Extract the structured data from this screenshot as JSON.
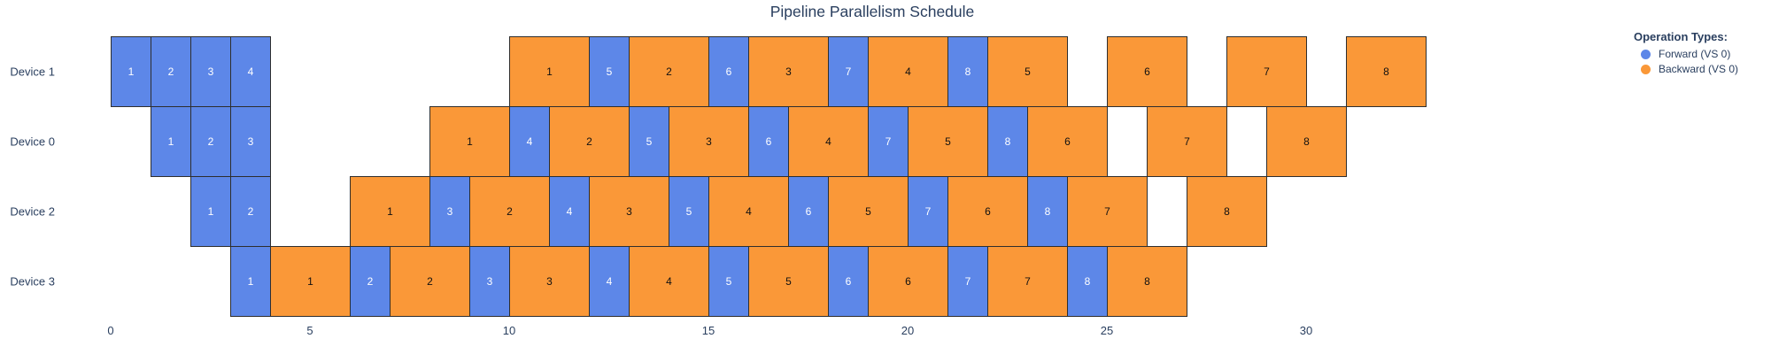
{
  "title": "Pipeline Parallelism Schedule",
  "legend": {
    "title": "Operation Types:",
    "items": [
      {
        "label": "Forward (VS 0)",
        "type": "forward",
        "color": "#5d87e8"
      },
      {
        "label": "Backward (VS 0)",
        "type": "backward",
        "color": "#fa9838"
      }
    ]
  },
  "colors": {
    "forward_fill": "#5d87e8",
    "backward_fill": "#fa9838",
    "block_border": "#2e2e2e",
    "forward_text": "#ffffff",
    "backward_text": "#111111",
    "axis_text": "#2a3f5f",
    "background": "#ffffff"
  },
  "chart_data": {
    "type": "gantt",
    "title": "Pipeline Parallelism Schedule",
    "xlabel": "",
    "ylabel": "",
    "grid": false,
    "legend_position": "top-right",
    "x_ticks": [
      0,
      5,
      10,
      15,
      20,
      25,
      30
    ],
    "x_range": [
      0,
      33
    ],
    "forward_duration": 1,
    "backward_duration": 2,
    "num_microbatches": 8,
    "rows": [
      {
        "device": "Device 1",
        "ops": [
          {
            "t": "F",
            "mb": 1,
            "start": 0,
            "dur": 1
          },
          {
            "t": "F",
            "mb": 2,
            "start": 1,
            "dur": 1
          },
          {
            "t": "F",
            "mb": 3,
            "start": 2,
            "dur": 1
          },
          {
            "t": "F",
            "mb": 4,
            "start": 3,
            "dur": 1
          },
          {
            "t": "B",
            "mb": 1,
            "start": 10,
            "dur": 2
          },
          {
            "t": "F",
            "mb": 5,
            "start": 12,
            "dur": 1
          },
          {
            "t": "B",
            "mb": 2,
            "start": 13,
            "dur": 2
          },
          {
            "t": "F",
            "mb": 6,
            "start": 15,
            "dur": 1
          },
          {
            "t": "B",
            "mb": 3,
            "start": 16,
            "dur": 2
          },
          {
            "t": "F",
            "mb": 7,
            "start": 18,
            "dur": 1
          },
          {
            "t": "B",
            "mb": 4,
            "start": 19,
            "dur": 2
          },
          {
            "t": "F",
            "mb": 8,
            "start": 21,
            "dur": 1
          },
          {
            "t": "B",
            "mb": 5,
            "start": 22,
            "dur": 2
          },
          {
            "t": "B",
            "mb": 6,
            "start": 25,
            "dur": 2
          },
          {
            "t": "B",
            "mb": 7,
            "start": 28,
            "dur": 2
          },
          {
            "t": "B",
            "mb": 8,
            "start": 31,
            "dur": 2
          }
        ]
      },
      {
        "device": "Device 0",
        "ops": [
          {
            "t": "F",
            "mb": 1,
            "start": 1,
            "dur": 1
          },
          {
            "t": "F",
            "mb": 2,
            "start": 2,
            "dur": 1
          },
          {
            "t": "F",
            "mb": 3,
            "start": 3,
            "dur": 1
          },
          {
            "t": "B",
            "mb": 1,
            "start": 8,
            "dur": 2
          },
          {
            "t": "F",
            "mb": 4,
            "start": 10,
            "dur": 1
          },
          {
            "t": "B",
            "mb": 2,
            "start": 11,
            "dur": 2
          },
          {
            "t": "F",
            "mb": 5,
            "start": 13,
            "dur": 1
          },
          {
            "t": "B",
            "mb": 3,
            "start": 14,
            "dur": 2
          },
          {
            "t": "F",
            "mb": 6,
            "start": 16,
            "dur": 1
          },
          {
            "t": "B",
            "mb": 4,
            "start": 17,
            "dur": 2
          },
          {
            "t": "F",
            "mb": 7,
            "start": 19,
            "dur": 1
          },
          {
            "t": "B",
            "mb": 5,
            "start": 20,
            "dur": 2
          },
          {
            "t": "F",
            "mb": 8,
            "start": 22,
            "dur": 1
          },
          {
            "t": "B",
            "mb": 6,
            "start": 23,
            "dur": 2
          },
          {
            "t": "B",
            "mb": 7,
            "start": 26,
            "dur": 2
          },
          {
            "t": "B",
            "mb": 8,
            "start": 29,
            "dur": 2
          }
        ]
      },
      {
        "device": "Device 2",
        "ops": [
          {
            "t": "F",
            "mb": 1,
            "start": 2,
            "dur": 1
          },
          {
            "t": "F",
            "mb": 2,
            "start": 3,
            "dur": 1
          },
          {
            "t": "B",
            "mb": 1,
            "start": 6,
            "dur": 2
          },
          {
            "t": "F",
            "mb": 3,
            "start": 8,
            "dur": 1
          },
          {
            "t": "B",
            "mb": 2,
            "start": 9,
            "dur": 2
          },
          {
            "t": "F",
            "mb": 4,
            "start": 11,
            "dur": 1
          },
          {
            "t": "B",
            "mb": 3,
            "start": 12,
            "dur": 2
          },
          {
            "t": "F",
            "mb": 5,
            "start": 14,
            "dur": 1
          },
          {
            "t": "B",
            "mb": 4,
            "start": 15,
            "dur": 2
          },
          {
            "t": "F",
            "mb": 6,
            "start": 17,
            "dur": 1
          },
          {
            "t": "B",
            "mb": 5,
            "start": 18,
            "dur": 2
          },
          {
            "t": "F",
            "mb": 7,
            "start": 20,
            "dur": 1
          },
          {
            "t": "B",
            "mb": 6,
            "start": 21,
            "dur": 2
          },
          {
            "t": "F",
            "mb": 8,
            "start": 23,
            "dur": 1
          },
          {
            "t": "B",
            "mb": 7,
            "start": 24,
            "dur": 2
          },
          {
            "t": "B",
            "mb": 8,
            "start": 27,
            "dur": 2
          }
        ]
      },
      {
        "device": "Device 3",
        "ops": [
          {
            "t": "F",
            "mb": 1,
            "start": 3,
            "dur": 1
          },
          {
            "t": "B",
            "mb": 1,
            "start": 4,
            "dur": 2
          },
          {
            "t": "F",
            "mb": 2,
            "start": 6,
            "dur": 1
          },
          {
            "t": "B",
            "mb": 2,
            "start": 7,
            "dur": 2
          },
          {
            "t": "F",
            "mb": 3,
            "start": 9,
            "dur": 1
          },
          {
            "t": "B",
            "mb": 3,
            "start": 10,
            "dur": 2
          },
          {
            "t": "F",
            "mb": 4,
            "start": 12,
            "dur": 1
          },
          {
            "t": "B",
            "mb": 4,
            "start": 13,
            "dur": 2
          },
          {
            "t": "F",
            "mb": 5,
            "start": 15,
            "dur": 1
          },
          {
            "t": "B",
            "mb": 5,
            "start": 16,
            "dur": 2
          },
          {
            "t": "F",
            "mb": 6,
            "start": 18,
            "dur": 1
          },
          {
            "t": "B",
            "mb": 6,
            "start": 19,
            "dur": 2
          },
          {
            "t": "F",
            "mb": 7,
            "start": 21,
            "dur": 1
          },
          {
            "t": "B",
            "mb": 7,
            "start": 22,
            "dur": 2
          },
          {
            "t": "F",
            "mb": 8,
            "start": 24,
            "dur": 1
          },
          {
            "t": "B",
            "mb": 8,
            "start": 25,
            "dur": 2
          }
        ]
      }
    ]
  }
}
